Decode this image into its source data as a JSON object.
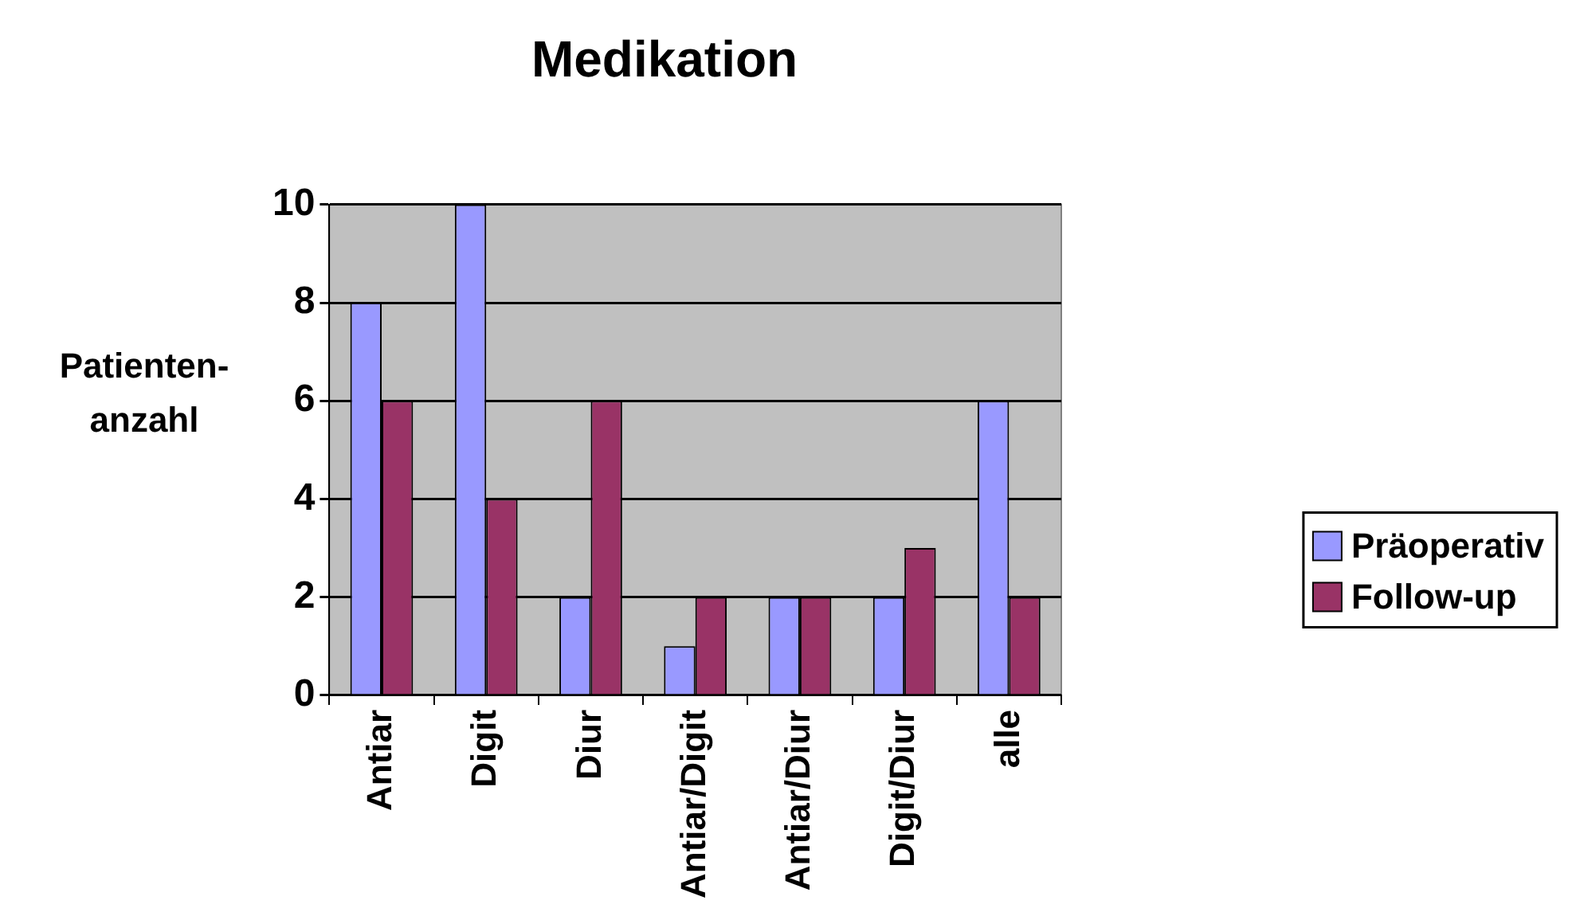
{
  "chart_data": {
    "type": "bar",
    "title": "Medikation",
    "ylabel": "Patienten-anzahl",
    "categories": [
      "Antiar",
      "Digit",
      "Diur",
      "Antiar/Digit",
      "Antiar/Diur",
      "Digit/Diur",
      "alle"
    ],
    "series": [
      {
        "name": "Präoperativ",
        "color": "#9999ff",
        "values": [
          8,
          10,
          2,
          1,
          2,
          2,
          6
        ]
      },
      {
        "name": "Follow-up",
        "color": "#993366",
        "values": [
          6,
          4,
          6,
          2,
          2,
          3,
          2
        ]
      }
    ],
    "ylim": [
      0,
      10
    ],
    "yticks": [
      0,
      2,
      4,
      6,
      8,
      10
    ],
    "grid": "y",
    "legend": "right"
  }
}
